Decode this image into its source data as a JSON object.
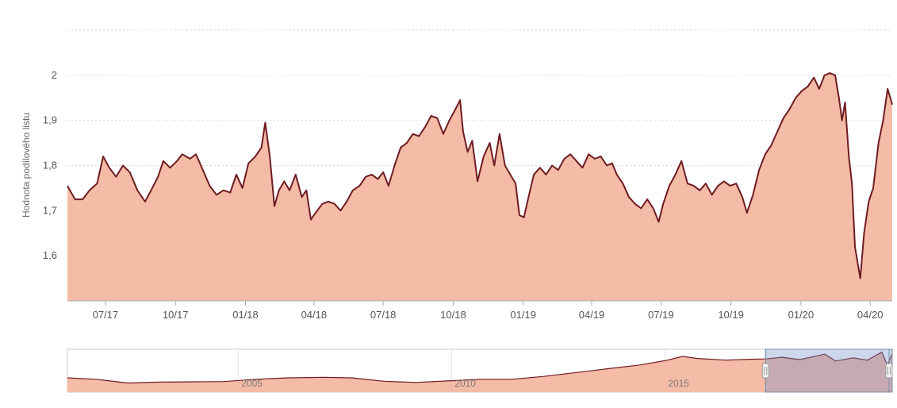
{
  "chart_data": [
    {
      "type": "area",
      "title": "",
      "ylabel": "Hodnota podílového listu",
      "xlabel": "",
      "ylim": [
        1.5,
        2.1
      ],
      "yticks": [
        1.6,
        1.7,
        1.8,
        1.9,
        2.0
      ],
      "ytick_labels": [
        "1,6",
        "1,7",
        "1,8",
        "1,9",
        "2"
      ],
      "x_range": [
        "2017-05-12",
        "2020-04-30"
      ],
      "xtick_dates": [
        "2017-07-01",
        "2017-10-01",
        "2018-01-01",
        "2018-04-01",
        "2018-07-01",
        "2018-10-01",
        "2019-01-01",
        "2019-04-01",
        "2019-07-01",
        "2019-10-01",
        "2020-01-01",
        "2020-04-01"
      ],
      "xtick_labels": [
        "07/17",
        "10/17",
        "01/18",
        "04/18",
        "07/18",
        "10/18",
        "01/19",
        "04/19",
        "07/19",
        "10/19",
        "01/20",
        "04/20"
      ],
      "grid": true,
      "legend": "none",
      "series": [
        {
          "line_color": "#6e1c22",
          "fill_color": "#f4bba6",
          "points": [
            [
              "2017-05-12",
              1.755
            ],
            [
              "2017-05-22",
              1.725
            ],
            [
              "2017-06-01",
              1.725
            ],
            [
              "2017-06-10",
              1.745
            ],
            [
              "2017-06-20",
              1.76
            ],
            [
              "2017-06-28",
              1.82
            ],
            [
              "2017-07-06",
              1.795
            ],
            [
              "2017-07-15",
              1.775
            ],
            [
              "2017-07-24",
              1.8
            ],
            [
              "2017-08-02",
              1.785
            ],
            [
              "2017-08-12",
              1.745
            ],
            [
              "2017-08-22",
              1.72
            ],
            [
              "2017-08-30",
              1.745
            ],
            [
              "2017-09-08",
              1.775
            ],
            [
              "2017-09-15",
              1.81
            ],
            [
              "2017-09-24",
              1.795
            ],
            [
              "2017-10-03",
              1.81
            ],
            [
              "2017-10-10",
              1.825
            ],
            [
              "2017-10-20",
              1.815
            ],
            [
              "2017-10-28",
              1.825
            ],
            [
              "2017-11-06",
              1.79
            ],
            [
              "2017-11-15",
              1.755
            ],
            [
              "2017-11-24",
              1.735
            ],
            [
              "2017-12-03",
              1.745
            ],
            [
              "2017-12-12",
              1.74
            ],
            [
              "2017-12-20",
              1.78
            ],
            [
              "2017-12-28",
              1.75
            ],
            [
              "2018-01-05",
              1.805
            ],
            [
              "2018-01-14",
              1.82
            ],
            [
              "2018-01-22",
              1.84
            ],
            [
              "2018-01-27",
              1.895
            ],
            [
              "2018-02-02",
              1.82
            ],
            [
              "2018-02-08",
              1.71
            ],
            [
              "2018-02-14",
              1.745
            ],
            [
              "2018-02-21",
              1.765
            ],
            [
              "2018-02-28",
              1.745
            ],
            [
              "2018-03-08",
              1.78
            ],
            [
              "2018-03-16",
              1.73
            ],
            [
              "2018-03-22",
              1.745
            ],
            [
              "2018-03-28",
              1.68
            ],
            [
              "2018-04-03",
              1.695
            ],
            [
              "2018-04-12",
              1.715
            ],
            [
              "2018-04-20",
              1.72
            ],
            [
              "2018-04-28",
              1.715
            ],
            [
              "2018-05-06",
              1.7
            ],
            [
              "2018-05-14",
              1.72
            ],
            [
              "2018-05-22",
              1.745
            ],
            [
              "2018-05-31",
              1.755
            ],
            [
              "2018-06-08",
              1.775
            ],
            [
              "2018-06-16",
              1.78
            ],
            [
              "2018-06-24",
              1.77
            ],
            [
              "2018-07-01",
              1.785
            ],
            [
              "2018-07-08",
              1.755
            ],
            [
              "2018-07-16",
              1.8
            ],
            [
              "2018-07-24",
              1.84
            ],
            [
              "2018-08-01",
              1.85
            ],
            [
              "2018-08-09",
              1.87
            ],
            [
              "2018-08-17",
              1.865
            ],
            [
              "2018-08-25",
              1.885
            ],
            [
              "2018-09-02",
              1.91
            ],
            [
              "2018-09-10",
              1.905
            ],
            [
              "2018-09-18",
              1.87
            ],
            [
              "2018-09-26",
              1.9
            ],
            [
              "2018-10-04",
              1.925
            ],
            [
              "2018-10-10",
              1.945
            ],
            [
              "2018-10-14",
              1.875
            ],
            [
              "2018-10-20",
              1.83
            ],
            [
              "2018-10-26",
              1.855
            ],
            [
              "2018-11-02",
              1.765
            ],
            [
              "2018-11-10",
              1.82
            ],
            [
              "2018-11-18",
              1.85
            ],
            [
              "2018-11-24",
              1.8
            ],
            [
              "2018-12-01",
              1.87
            ],
            [
              "2018-12-08",
              1.8
            ],
            [
              "2018-12-15",
              1.78
            ],
            [
              "2018-12-22",
              1.76
            ],
            [
              "2018-12-27",
              1.69
            ],
            [
              "2019-01-02",
              1.685
            ],
            [
              "2019-01-08",
              1.73
            ],
            [
              "2019-01-15",
              1.78
            ],
            [
              "2019-01-23",
              1.795
            ],
            [
              "2019-01-31",
              1.78
            ],
            [
              "2019-02-08",
              1.8
            ],
            [
              "2019-02-16",
              1.79
            ],
            [
              "2019-02-24",
              1.815
            ],
            [
              "2019-03-04",
              1.825
            ],
            [
              "2019-03-12",
              1.81
            ],
            [
              "2019-03-20",
              1.795
            ],
            [
              "2019-03-28",
              1.825
            ],
            [
              "2019-04-05",
              1.815
            ],
            [
              "2019-04-13",
              1.82
            ],
            [
              "2019-04-21",
              1.8
            ],
            [
              "2019-04-28",
              1.805
            ],
            [
              "2019-05-04",
              1.78
            ],
            [
              "2019-05-12",
              1.76
            ],
            [
              "2019-05-20",
              1.73
            ],
            [
              "2019-05-28",
              1.715
            ],
            [
              "2019-06-05",
              1.705
            ],
            [
              "2019-06-13",
              1.725
            ],
            [
              "2019-06-21",
              1.705
            ],
            [
              "2019-06-28",
              1.675
            ],
            [
              "2019-07-04",
              1.715
            ],
            [
              "2019-07-12",
              1.755
            ],
            [
              "2019-07-20",
              1.78
            ],
            [
              "2019-07-28",
              1.81
            ],
            [
              "2019-08-05",
              1.76
            ],
            [
              "2019-08-13",
              1.755
            ],
            [
              "2019-08-21",
              1.745
            ],
            [
              "2019-08-29",
              1.76
            ],
            [
              "2019-09-06",
              1.735
            ],
            [
              "2019-09-14",
              1.755
            ],
            [
              "2019-09-22",
              1.765
            ],
            [
              "2019-09-30",
              1.755
            ],
            [
              "2019-10-08",
              1.76
            ],
            [
              "2019-10-16",
              1.73
            ],
            [
              "2019-10-22",
              1.695
            ],
            [
              "2019-10-30",
              1.735
            ],
            [
              "2019-11-07",
              1.79
            ],
            [
              "2019-11-15",
              1.825
            ],
            [
              "2019-11-23",
              1.845
            ],
            [
              "2019-12-01",
              1.875
            ],
            [
              "2019-12-09",
              1.905
            ],
            [
              "2019-12-17",
              1.925
            ],
            [
              "2019-12-25",
              1.95
            ],
            [
              "2020-01-02",
              1.965
            ],
            [
              "2020-01-10",
              1.975
            ],
            [
              "2020-01-18",
              1.995
            ],
            [
              "2020-01-25",
              1.97
            ],
            [
              "2020-02-01",
              2.0
            ],
            [
              "2020-02-08",
              2.005
            ],
            [
              "2020-02-15",
              2.0
            ],
            [
              "2020-02-20",
              1.95
            ],
            [
              "2020-02-24",
              1.9
            ],
            [
              "2020-02-28",
              1.94
            ],
            [
              "2020-03-04",
              1.82
            ],
            [
              "2020-03-08",
              1.76
            ],
            [
              "2020-03-12",
              1.62
            ],
            [
              "2020-03-16",
              1.58
            ],
            [
              "2020-03-19",
              1.55
            ],
            [
              "2020-03-24",
              1.65
            ],
            [
              "2020-03-30",
              1.72
            ],
            [
              "2020-04-05",
              1.75
            ],
            [
              "2020-04-12",
              1.85
            ],
            [
              "2020-04-18",
              1.9
            ],
            [
              "2020-04-24",
              1.97
            ],
            [
              "2020-04-30",
              1.935
            ]
          ]
        }
      ]
    },
    {
      "type": "area",
      "title": "",
      "xtick_labels": [
        "2005",
        "2010",
        "2015"
      ],
      "x_range": [
        "2001-01-01",
        "2020-04-30"
      ],
      "ylim": [
        0.6,
        2.1
      ],
      "selected_range": [
        "2017-05-12",
        "2020-04-30"
      ],
      "legend": "none",
      "series": [
        {
          "line_color": "#6e1c22",
          "fill_color": "#f4bba6",
          "points": [
            [
              "2001-01-01",
              1.1
            ],
            [
              "2001-09-01",
              1.05
            ],
            [
              "2002-06-01",
              0.92
            ],
            [
              "2003-03-01",
              0.95
            ],
            [
              "2004-01-01",
              0.96
            ],
            [
              "2004-09-01",
              0.97
            ],
            [
              "2005-06-01",
              1.05
            ],
            [
              "2006-03-01",
              1.1
            ],
            [
              "2007-01-01",
              1.12
            ],
            [
              "2007-09-01",
              1.1
            ],
            [
              "2008-06-01",
              0.98
            ],
            [
              "2009-03-01",
              0.94
            ],
            [
              "2010-01-01",
              1.0
            ],
            [
              "2010-09-01",
              1.05
            ],
            [
              "2011-06-01",
              1.05
            ],
            [
              "2012-03-01",
              1.15
            ],
            [
              "2013-01-01",
              1.3
            ],
            [
              "2013-09-01",
              1.42
            ],
            [
              "2014-06-01",
              1.55
            ],
            [
              "2015-01-01",
              1.7
            ],
            [
              "2015-06-01",
              1.85
            ],
            [
              "2015-10-01",
              1.78
            ],
            [
              "2016-06-01",
              1.72
            ],
            [
              "2017-01-01",
              1.75
            ],
            [
              "2017-05-12",
              1.76
            ],
            [
              "2017-10-01",
              1.82
            ],
            [
              "2018-03-01",
              1.74
            ],
            [
              "2018-10-01",
              1.93
            ],
            [
              "2019-01-01",
              1.69
            ],
            [
              "2019-06-01",
              1.8
            ],
            [
              "2019-10-01",
              1.72
            ],
            [
              "2020-02-01",
              2.0
            ],
            [
              "2020-03-19",
              1.55
            ],
            [
              "2020-04-30",
              1.94
            ]
          ]
        }
      ]
    }
  ]
}
